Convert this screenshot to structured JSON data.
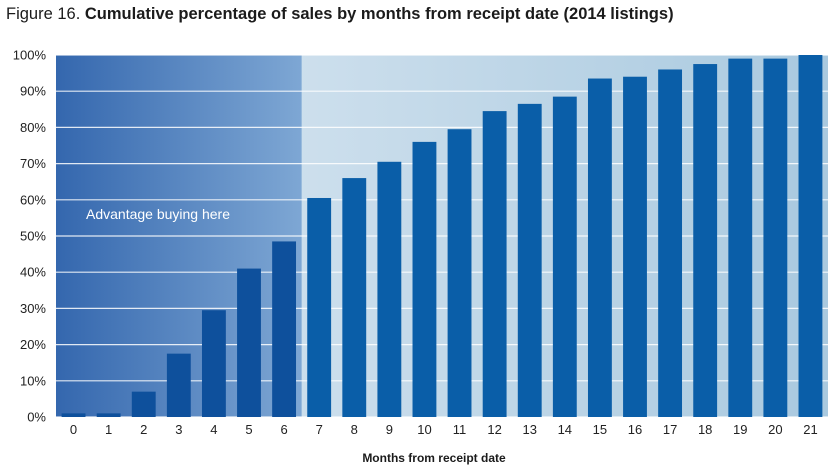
{
  "chart_data": {
    "type": "bar",
    "title_prefix": "Figure 16.",
    "title": "Cumulative percentage of sales by months from receipt date (2014 listings)",
    "xlabel": "Months from receipt date",
    "ylabel": "",
    "categories": [
      "0",
      "1",
      "2",
      "3",
      "4",
      "5",
      "6",
      "7",
      "8",
      "9",
      "10",
      "11",
      "12",
      "13",
      "14",
      "15",
      "16",
      "17",
      "18",
      "19",
      "20",
      "21"
    ],
    "values": [
      1,
      1,
      7,
      17.5,
      29.5,
      41,
      48.5,
      60.5,
      66,
      70.5,
      76,
      79.5,
      84.5,
      86.5,
      88.5,
      93.5,
      94,
      96,
      97.5,
      99,
      99,
      100
    ],
    "y_ticks": [
      "0%",
      "10%",
      "20%",
      "30%",
      "40%",
      "50%",
      "60%",
      "70%",
      "80%",
      "90%",
      "100%"
    ],
    "ylim": [
      0,
      100
    ],
    "y_tick_step": 10,
    "grid": true,
    "legend": "none",
    "highlight": {
      "from_category": 0,
      "to_category": 6,
      "label": "Advantage buying here"
    }
  },
  "colors": {
    "bar": "#0a5ea8",
    "bar_highlight": "#0e509c",
    "plot_bg_left": "#dde9f3",
    "plot_bg_right": "#a9c9df",
    "highlight_left": "#3467ae",
    "highlight_right": "#7ea7d4",
    "grid": "#ffffff"
  }
}
